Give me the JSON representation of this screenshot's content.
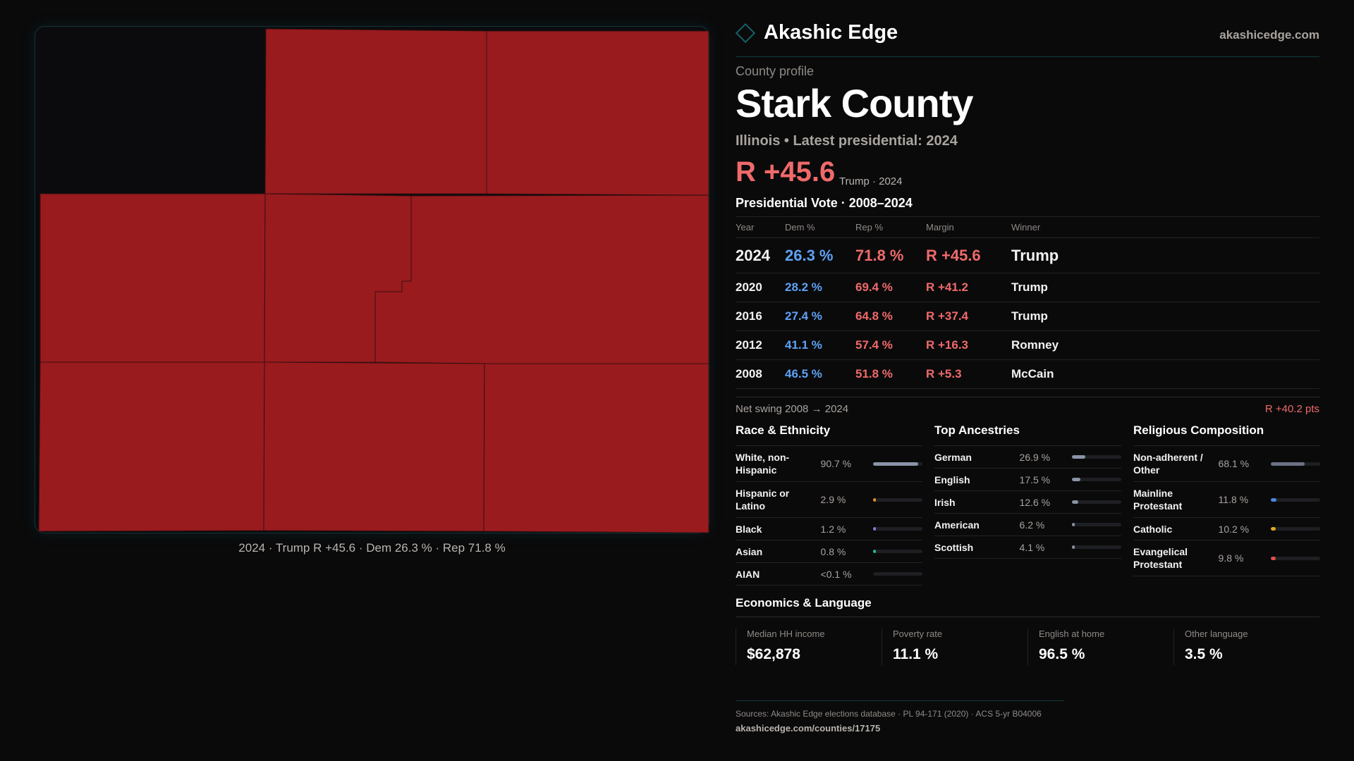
{
  "brand": {
    "name": "Akashic Edge",
    "site": "akashicedge.com",
    "icon": "diamond-logo-icon"
  },
  "header": {
    "kicker": "County profile",
    "title": "Stark County",
    "subtitle": "Illinois • Latest presidential: 2024"
  },
  "headline": {
    "margin": "R +45.6",
    "detail": "Trump · 2024"
  },
  "map": {
    "caption": "2024 · Trump R +45.6 · Dem 26.3 % · Rep 71.8 %",
    "fill_color": "#991b1e"
  },
  "presidential": {
    "title": "Presidential Vote · 2008–2024",
    "columns": [
      "Year",
      "Dem %",
      "Rep %",
      "Margin",
      "Winner"
    ],
    "rows": [
      {
        "year": "2024",
        "dem": "26.3 %",
        "rep": "71.8 %",
        "margin": "R +45.6",
        "winner": "Trump"
      },
      {
        "year": "2020",
        "dem": "28.2 %",
        "rep": "69.4 %",
        "margin": "R +41.2",
        "winner": "Trump"
      },
      {
        "year": "2016",
        "dem": "27.4 %",
        "rep": "64.8 %",
        "margin": "R +37.4",
        "winner": "Trump"
      },
      {
        "year": "2012",
        "dem": "41.1 %",
        "rep": "57.4 %",
        "margin": "R +16.3",
        "winner": "Romney"
      },
      {
        "year": "2008",
        "dem": "46.5 %",
        "rep": "51.8 %",
        "margin": "R +5.3",
        "winner": "McCain"
      }
    ],
    "swing_label": "Net swing 2008 → 2024",
    "swing_value": "R +40.2 pts"
  },
  "race": {
    "title": "Race & Ethnicity",
    "items": [
      {
        "label": "White, non-Hispanic",
        "value": "90.7 %",
        "pct": 90.7,
        "color": "#8a93a6"
      },
      {
        "label": "Hispanic or Latino",
        "value": "2.9 %",
        "pct": 2.9,
        "color": "#e0952a"
      },
      {
        "label": "Black",
        "value": "1.2 %",
        "pct": 1.2,
        "color": "#8b7bd8"
      },
      {
        "label": "Asian",
        "value": "0.8 %",
        "pct": 0.8,
        "color": "#2bb596"
      },
      {
        "label": "AIAN",
        "value": "<0.1 %",
        "pct": 0,
        "color": "#8a93a6"
      }
    ]
  },
  "ancestry": {
    "title": "Top Ancestries",
    "items": [
      {
        "label": "German",
        "value": "26.9 %",
        "pct": 26.9,
        "color": "#8a93a6"
      },
      {
        "label": "English",
        "value": "17.5 %",
        "pct": 17.5,
        "color": "#8a93a6"
      },
      {
        "label": "Irish",
        "value": "12.6 %",
        "pct": 12.6,
        "color": "#8a93a6"
      },
      {
        "label": "American",
        "value": "6.2 %",
        "pct": 6.2,
        "color": "#8a93a6"
      },
      {
        "label": "Scottish",
        "value": "4.1 %",
        "pct": 4.1,
        "color": "#8a93a6"
      }
    ]
  },
  "religion": {
    "title": "Religious Composition",
    "items": [
      {
        "label": "Non-adherent / Other",
        "value": "68.1 %",
        "pct": 68.1,
        "color": "#6b7282"
      },
      {
        "label": "Mainline Protestant",
        "value": "11.8 %",
        "pct": 11.8,
        "color": "#4a86e0"
      },
      {
        "label": "Catholic",
        "value": "10.2 %",
        "pct": 10.2,
        "color": "#e0a820"
      },
      {
        "label": "Evangelical Protestant",
        "value": "9.8 %",
        "pct": 9.8,
        "color": "#e05050"
      }
    ]
  },
  "economics": {
    "title": "Economics & Language",
    "stats": [
      {
        "label": "Median HH income",
        "value": "$62,878"
      },
      {
        "label": "Poverty rate",
        "value": "11.1 %"
      },
      {
        "label": "English at home",
        "value": "96.5 %"
      },
      {
        "label": "Other language",
        "value": "3.5 %"
      }
    ]
  },
  "footer": {
    "sources": "Sources: Akashic Edge elections database · PL 94-171 (2020) · ACS 5-yr B04006",
    "url": "akashicedge.com/counties/17175"
  }
}
